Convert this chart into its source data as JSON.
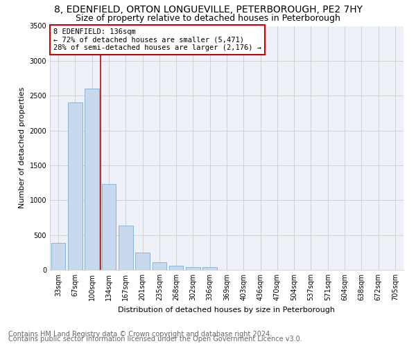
{
  "title_line1": "8, EDENFIELD, ORTON LONGUEVILLE, PETERBOROUGH, PE2 7HY",
  "title_line2": "Size of property relative to detached houses in Peterborough",
  "xlabel": "Distribution of detached houses by size in Peterborough",
  "ylabel": "Number of detached properties",
  "footnote1": "Contains HM Land Registry data © Crown copyright and database right 2024.",
  "footnote2": "Contains public sector information licensed under the Open Government Licence v3.0.",
  "bar_labels": [
    "33sqm",
    "67sqm",
    "100sqm",
    "134sqm",
    "167sqm",
    "201sqm",
    "235sqm",
    "268sqm",
    "302sqm",
    "336sqm",
    "369sqm",
    "403sqm",
    "436sqm",
    "470sqm",
    "504sqm",
    "537sqm",
    "571sqm",
    "604sqm",
    "638sqm",
    "672sqm",
    "705sqm"
  ],
  "bar_values": [
    390,
    2400,
    2600,
    1230,
    640,
    250,
    110,
    60,
    40,
    40,
    0,
    0,
    0,
    0,
    0,
    0,
    0,
    0,
    0,
    0,
    0
  ],
  "vline_index": 3,
  "annotation_line1": "8 EDENFIELD: 136sqm",
  "annotation_line2": "← 72% of detached houses are smaller (5,471)",
  "annotation_line3": "28% of semi-detached houses are larger (2,176) →",
  "bar_color": "#c8d9ee",
  "bar_edge_color": "#7bafd4",
  "vline_color": "#cc0000",
  "annotation_box_edgecolor": "#cc0000",
  "ylim": [
    0,
    3500
  ],
  "yticks": [
    0,
    500,
    1000,
    1500,
    2000,
    2500,
    3000,
    3500
  ],
  "grid_color": "#cccccc",
  "bg_color": "#eef2f8",
  "title_fontsize": 10,
  "subtitle_fontsize": 9,
  "axis_fontsize": 8,
  "tick_fontsize": 7,
  "footnote_fontsize": 7
}
